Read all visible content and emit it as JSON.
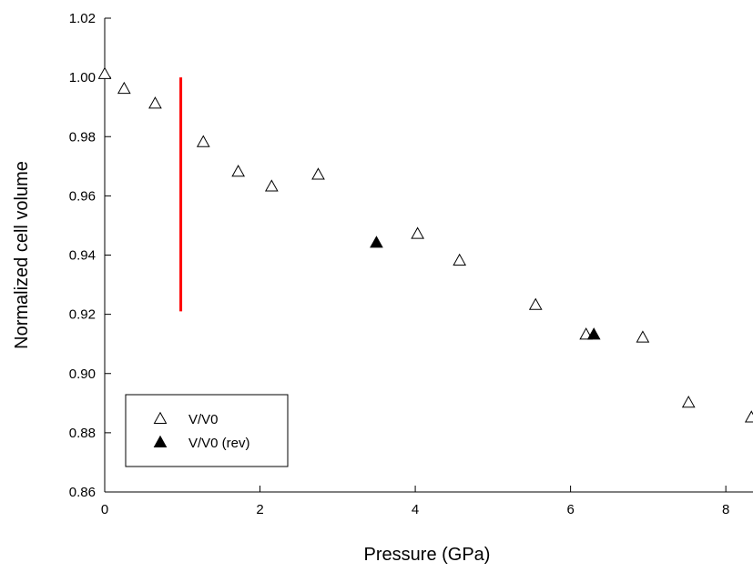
{
  "chart_data": {
    "type": "scatter",
    "title": "",
    "xlabel": "Pressure (GPa)",
    "ylabel": "Normalized cell volume",
    "xlim": [
      0,
      8.35
    ],
    "ylim": [
      0.86,
      1.02
    ],
    "xticks": [
      0,
      2,
      4,
      6,
      8
    ],
    "xtick_labels": [
      "0",
      "2",
      "4",
      "6",
      "8"
    ],
    "yticks": [
      0.86,
      0.88,
      0.9,
      0.92,
      0.94,
      0.96,
      0.98,
      1.0,
      1.02
    ],
    "ytick_labels": [
      "0.86",
      "0.88",
      "0.90",
      "0.92",
      "0.94",
      "0.96",
      "0.98",
      "1.00",
      "1.02"
    ],
    "grid": false,
    "legend_position": "bottom-left",
    "series": [
      {
        "name": "V/V0",
        "marker": "open-triangle",
        "color": "#000000",
        "x": [
          0.0,
          0.25,
          0.65,
          1.27,
          1.72,
          2.15,
          2.75,
          4.03,
          4.57,
          5.55,
          6.2,
          6.93,
          7.52,
          8.33
        ],
        "y": [
          1.001,
          0.996,
          0.991,
          0.978,
          0.968,
          0.963,
          0.967,
          0.947,
          0.938,
          0.923,
          0.913,
          0.912,
          0.89,
          0.885
        ]
      },
      {
        "name": "V/V0 (rev)",
        "marker": "filled-triangle",
        "color": "#000000",
        "x": [
          3.5,
          6.3
        ],
        "y": [
          0.944,
          0.913
        ]
      }
    ],
    "annotations": [
      {
        "type": "vertical-line",
        "color": "#ff0000",
        "x": 0.98,
        "y_from": 0.921,
        "y_to": 1.0
      }
    ]
  }
}
